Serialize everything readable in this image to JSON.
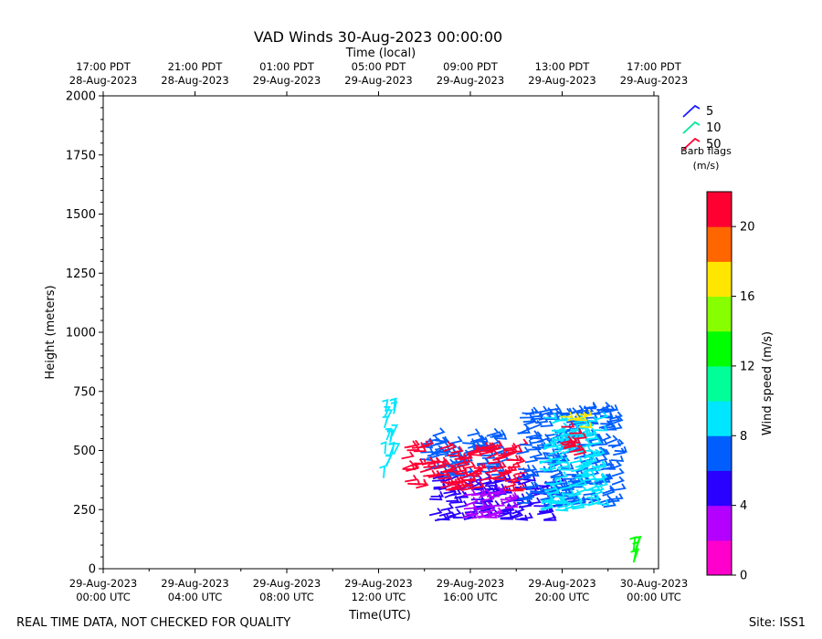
{
  "chart_data": {
    "type": "scatter",
    "title": "VAD Winds 30-Aug-2023 00:00:00",
    "top_axis_title": "Time (local)",
    "xlabel": "Time(UTC)",
    "ylabel": "Height (meters)",
    "ylim": [
      0,
      2000
    ],
    "xlim_hours_utc": [
      0,
      24.2
    ],
    "y_ticks": [
      "0",
      "250",
      "500",
      "750",
      "1000",
      "1250",
      "1500",
      "1750",
      "2000"
    ],
    "x_ticks": [
      {
        "h": 0,
        "line1": "29-Aug-2023",
        "line2": "00:00 UTC"
      },
      {
        "h": 4,
        "line1": "29-Aug-2023",
        "line2": "04:00 UTC"
      },
      {
        "h": 8,
        "line1": "29-Aug-2023",
        "line2": "08:00 UTC"
      },
      {
        "h": 12,
        "line1": "29-Aug-2023",
        "line2": "12:00 UTC"
      },
      {
        "h": 16,
        "line1": "29-Aug-2023",
        "line2": "16:00 UTC"
      },
      {
        "h": 20,
        "line1": "29-Aug-2023",
        "line2": "20:00 UTC"
      },
      {
        "h": 24,
        "line1": "30-Aug-2023",
        "line2": "00:00 UTC"
      }
    ],
    "top_ticks": [
      {
        "h": 0,
        "line1": "17:00 PDT",
        "line2": "28-Aug-2023"
      },
      {
        "h": 4,
        "line1": "21:00 PDT",
        "line2": "28-Aug-2023"
      },
      {
        "h": 8,
        "line1": "01:00 PDT",
        "line2": "29-Aug-2023"
      },
      {
        "h": 12,
        "line1": "05:00 PDT",
        "line2": "29-Aug-2023"
      },
      {
        "h": 16,
        "line1": "09:00 PDT",
        "line2": "29-Aug-2023"
      },
      {
        "h": 20,
        "line1": "13:00 PDT",
        "line2": "29-Aug-2023"
      },
      {
        "h": 24,
        "line1": "17:00 PDT",
        "line2": "29-Aug-2023"
      }
    ],
    "colorbar": {
      "label": "Wind speed (m/s)",
      "range": [
        0,
        22
      ],
      "ticks": [
        "0",
        "4",
        "8",
        "12",
        "16",
        "20"
      ],
      "colors": [
        "#ff00cc",
        "#b300ff",
        "#2a00ff",
        "#005eff",
        "#00e6ff",
        "#00ff99",
        "#00ff00",
        "#88ff00",
        "#ffe600",
        "#ff6600",
        "#ff0033"
      ]
    },
    "barb_legend": {
      "title_line1": "Barb flags",
      "title_line2": "(m/s)",
      "entries": [
        {
          "label": "5",
          "color": "#1a1aff"
        },
        {
          "label": "10",
          "color": "#00e699"
        },
        {
          "label": "50",
          "color": "#ff0033"
        }
      ]
    },
    "wind_regions": [
      {
        "name": "cyan-column",
        "x0": 12.2,
        "x1": 12.7,
        "y0": 380,
        "y1": 690,
        "speed": 8.5
      },
      {
        "name": "blue-lower",
        "x0": 14.2,
        "x1": 19.6,
        "y0": 200,
        "y1": 390,
        "speed": 5
      },
      {
        "name": "purple-core",
        "x0": 15.5,
        "x1": 17.6,
        "y0": 210,
        "y1": 320,
        "speed": 3
      },
      {
        "name": "mid-blue",
        "x0": 13.8,
        "x1": 17.2,
        "y0": 380,
        "y1": 570,
        "speed": 7
      },
      {
        "name": "red-band",
        "x0": 13.0,
        "x1": 18.0,
        "y0": 330,
        "y1": 520,
        "speed": 21
      },
      {
        "name": "blue-east",
        "x0": 18.0,
        "x1": 22.3,
        "y0": 260,
        "y1": 680,
        "speed": 7
      },
      {
        "name": "cyan-east",
        "x0": 19.0,
        "x1": 21.5,
        "y0": 240,
        "y1": 640,
        "speed": 9
      },
      {
        "name": "yellow-patch",
        "x0": 19.9,
        "x1": 20.8,
        "y0": 600,
        "y1": 660,
        "speed": 17
      },
      {
        "name": "red-east",
        "x0": 19.9,
        "x1": 20.6,
        "y0": 470,
        "y1": 620,
        "speed": 21
      },
      {
        "name": "green-surface",
        "x0": 23.1,
        "x1": 23.3,
        "y0": 0,
        "y1": 90,
        "speed": 13
      }
    ]
  },
  "footer": {
    "left_note": "REAL TIME DATA, NOT CHECKED FOR QUALITY",
    "site": "Site: ISS1"
  }
}
